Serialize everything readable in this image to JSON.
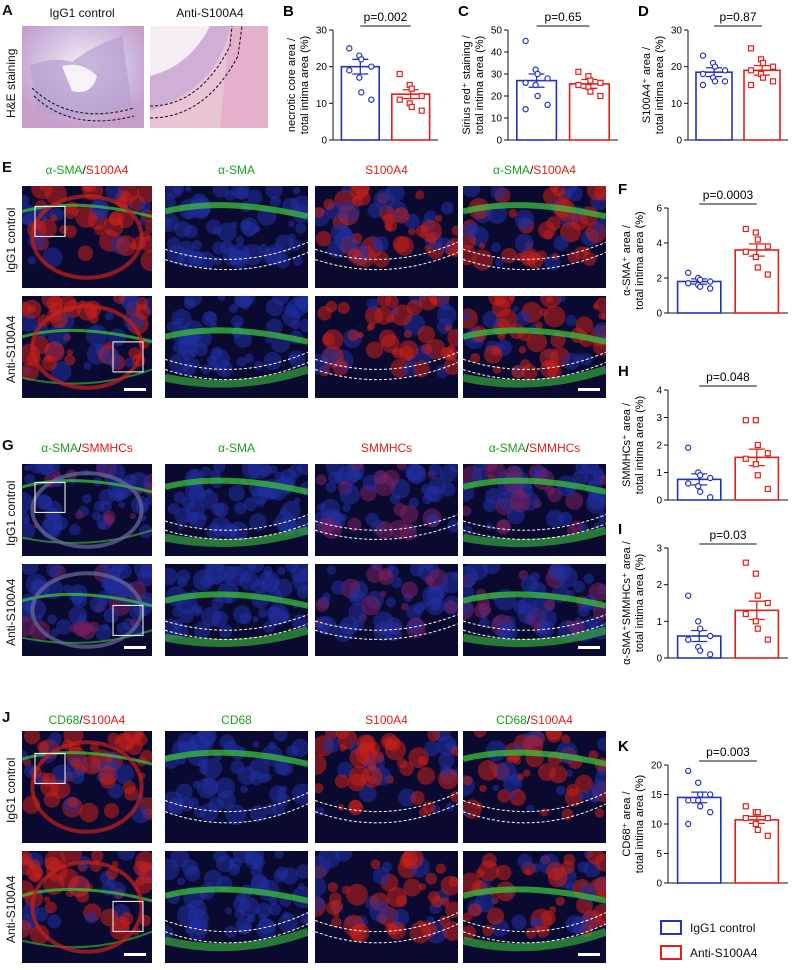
{
  "colors": {
    "control": "#2233bb",
    "anti": "#e0201a",
    "green": "#1aa31a",
    "red": "#e0201a"
  },
  "panels": {
    "A": {
      "letter": "A",
      "row_label": "H&E staining",
      "col1": "IgG1 control",
      "col2": "Anti-S100A4"
    },
    "E": {
      "letter": "E",
      "rows": [
        "IgG1 control",
        "Anti-S100A4"
      ],
      "headers": [
        {
          "a": "α-SMA",
          "b": "S100A4"
        },
        {
          "a": "α-SMA",
          "b": ""
        },
        {
          "a": "",
          "b": "S100A4"
        },
        {
          "a": "α-SMA",
          "b": "S100A4"
        }
      ]
    },
    "G": {
      "letter": "G",
      "rows": [
        "IgG1 control",
        "Anti-S100A4"
      ],
      "headers": [
        {
          "a": "α-SMA",
          "b": "SMMHCs"
        },
        {
          "a": "α-SMA",
          "b": ""
        },
        {
          "a": "",
          "b": "SMMHCs"
        },
        {
          "a": "α-SMA",
          "b": "SMMHCs"
        }
      ]
    },
    "J": {
      "letter": "J",
      "rows": [
        "IgG1 control",
        "Anti-S100A4"
      ],
      "headers": [
        {
          "a": "CD68",
          "b": "S100A4"
        },
        {
          "a": "CD68",
          "b": ""
        },
        {
          "a": "",
          "b": "S100A4"
        },
        {
          "a": "CD68",
          "b": "S100A4"
        }
      ]
    }
  },
  "legend": {
    "control": "IgG1 control",
    "anti": "Anti-S100A4"
  },
  "chart_data": [
    {
      "id": "B",
      "letter": "B",
      "type": "bar",
      "categories": [
        "IgG1 control",
        "Anti-S100A4"
      ],
      "ylabel_lines": [
        "necrotic core area /",
        "total intima area (%)"
      ],
      "ylim": [
        0,
        30
      ],
      "yticks": [
        0,
        10,
        20,
        30
      ],
      "pvalue": "p=0.002",
      "means": [
        20,
        12.5
      ],
      "sem": [
        2,
        1.2
      ],
      "points": [
        [
          25,
          23,
          22,
          20,
          19,
          17,
          13,
          11
        ],
        [
          18,
          15,
          14,
          12,
          11,
          10,
          9,
          8
        ]
      ]
    },
    {
      "id": "C",
      "letter": "C",
      "type": "bar",
      "categories": [
        "IgG1 control",
        "Anti-S100A4"
      ],
      "ylabel_lines": [
        "Sirius red⁺ staining /",
        "total intima area (%)"
      ],
      "ylim": [
        0,
        50
      ],
      "yticks": [
        0,
        10,
        20,
        30,
        40,
        50
      ],
      "pvalue": "p=0.65",
      "means": [
        27,
        25.5
      ],
      "sem": [
        3,
        2
      ],
      "points": [
        [
          45,
          32,
          30,
          28,
          26,
          25,
          20,
          16,
          14
        ],
        [
          31,
          29,
          27,
          26,
          25,
          24,
          22,
          20
        ]
      ]
    },
    {
      "id": "D",
      "letter": "D",
      "type": "bar",
      "categories": [
        "IgG1 control",
        "Anti-S100A4"
      ],
      "ylabel_lines": [
        "S100A4⁺ area /",
        "total intima area (%)"
      ],
      "ylim": [
        0,
        30
      ],
      "yticks": [
        0,
        10,
        20,
        30
      ],
      "pvalue": "p=0.87",
      "means": [
        18.5,
        19
      ],
      "sem": [
        1.2,
        1.3
      ],
      "points": [
        [
          23,
          21,
          20,
          19,
          18,
          17,
          16,
          16,
          15
        ],
        [
          25,
          22,
          21,
          20,
          19,
          18,
          17,
          16,
          15
        ]
      ]
    },
    {
      "id": "F",
      "letter": "F",
      "type": "bar",
      "categories": [
        "IgG1 control",
        "Anti-S100A4"
      ],
      "ylabel_lines": [
        "α-SMA⁺ area /",
        "total intima area (%)"
      ],
      "ylim": [
        0,
        6
      ],
      "yticks": [
        0,
        2,
        4,
        6
      ],
      "pvalue": "p=0.0003",
      "means": [
        1.8,
        3.6
      ],
      "sem": [
        0.15,
        0.35
      ],
      "points": [
        [
          2.3,
          2.0,
          1.9,
          1.8,
          1.7,
          1.6,
          1.5,
          1.4
        ],
        [
          4.8,
          4.6,
          4.2,
          3.8,
          3.5,
          3.2,
          2.6,
          2.2
        ]
      ]
    },
    {
      "id": "H",
      "letter": "H",
      "type": "bar",
      "categories": [
        "IgG1 control",
        "Anti-S100A4"
      ],
      "ylabel_lines": [
        "SMMHCs⁺ area /",
        "total intima area (%)"
      ],
      "ylim": [
        0,
        4
      ],
      "yticks": [
        0,
        1,
        2,
        3,
        4
      ],
      "pvalue": "p=0.048",
      "means": [
        0.75,
        1.55
      ],
      "sem": [
        0.2,
        0.3
      ],
      "points": [
        [
          1.9,
          1.0,
          0.9,
          0.8,
          0.6,
          0.5,
          0.3,
          0.1
        ],
        [
          2.9,
          2.9,
          2.0,
          1.7,
          1.5,
          1.3,
          0.9,
          0.4
        ]
      ]
    },
    {
      "id": "I",
      "letter": "I",
      "type": "bar",
      "categories": [
        "IgG1 control",
        "Anti-S100A4"
      ],
      "ylabel_lines": [
        "α-SMA⁺SMMHCs⁺ area /",
        "total intima area (%)"
      ],
      "ylim": [
        0,
        3
      ],
      "yticks": [
        0,
        1,
        2,
        3
      ],
      "pvalue": "p=0.03",
      "means": [
        0.6,
        1.3
      ],
      "sem": [
        0.15,
        0.25
      ],
      "points": [
        [
          1.7,
          1.0,
          0.8,
          0.6,
          0.5,
          0.3,
          0.2,
          0.1
        ],
        [
          2.6,
          2.3,
          1.7,
          1.5,
          1.2,
          1.0,
          0.8,
          0.5
        ]
      ]
    },
    {
      "id": "K",
      "letter": "K",
      "type": "bar",
      "categories": [
        "IgG1 control",
        "Anti-S100A4"
      ],
      "ylabel_lines": [
        "CD68⁺ area /",
        "total intima area (%)"
      ],
      "ylim": [
        0,
        20
      ],
      "yticks": [
        0,
        5,
        10,
        15,
        20
      ],
      "pvalue": "p=0.003",
      "means": [
        14.5,
        10.7
      ],
      "sem": [
        0.9,
        0.6
      ],
      "points": [
        [
          19,
          17,
          15,
          15,
          14,
          14,
          13,
          12,
          10
        ],
        [
          13,
          12,
          12,
          11,
          11,
          10,
          9,
          8
        ]
      ]
    }
  ]
}
